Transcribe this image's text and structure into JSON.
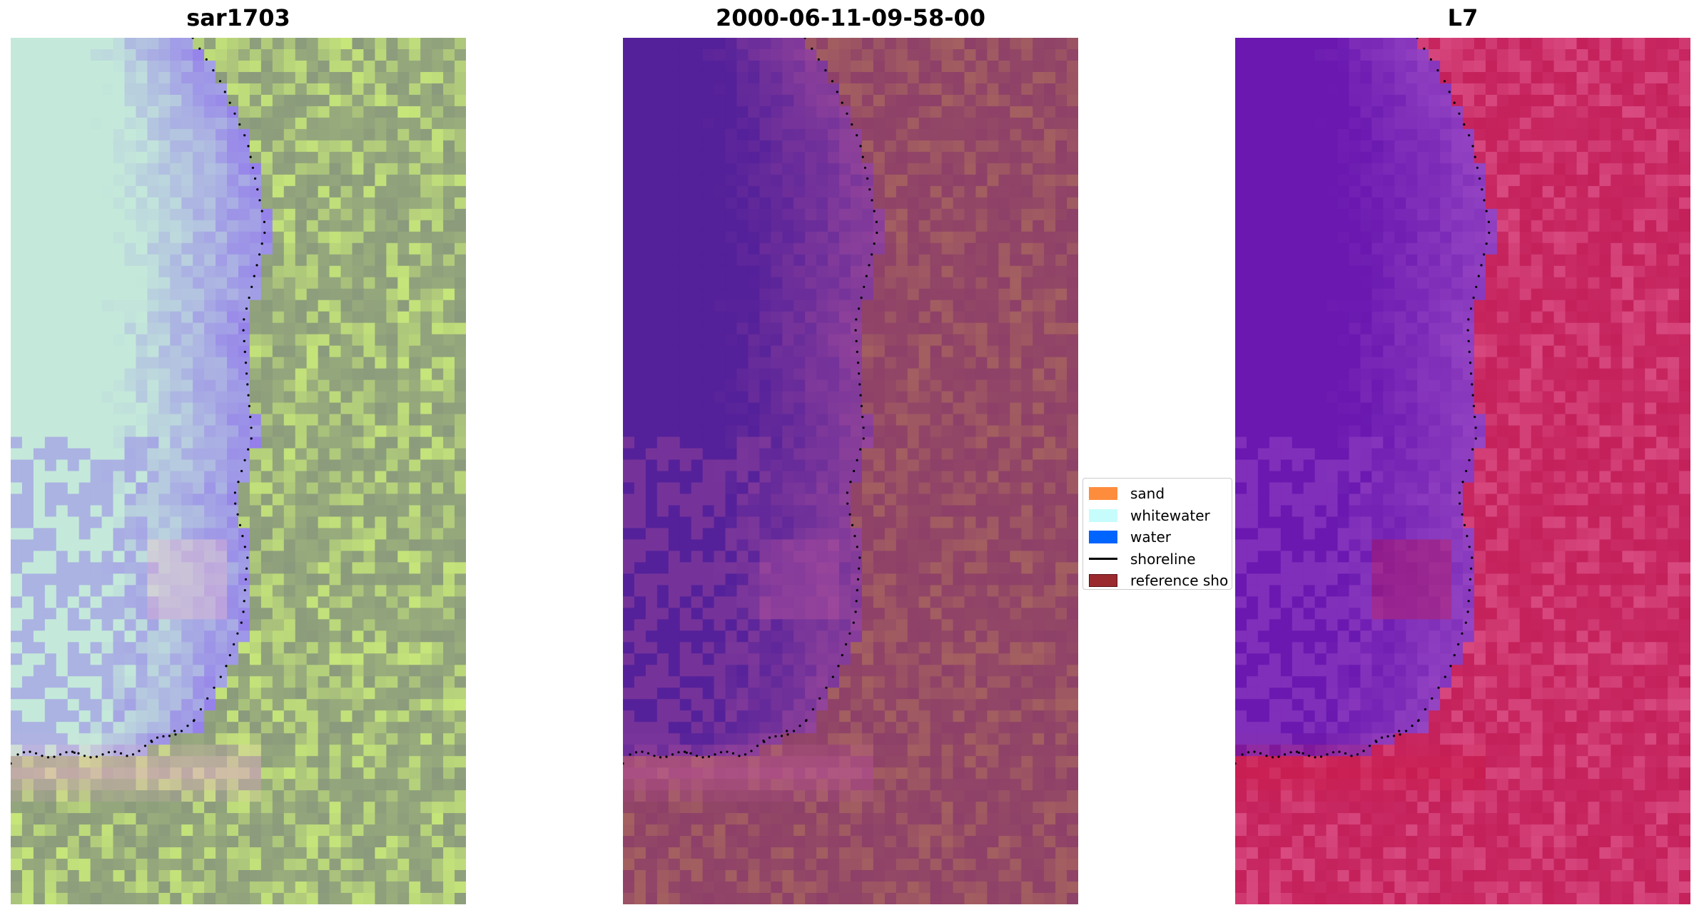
{
  "panels": [
    {
      "title": "sar1703",
      "colors": {
        "water": "#c4e9da",
        "mid": "#9b8fe8",
        "land": "#8a9a7c",
        "bright": "#c6e67a",
        "glow": "#f0b6cc"
      }
    },
    {
      "title": "2000-06-11-09-58-00",
      "colors": {
        "water": "#55219a",
        "mid": "#8a3f9a",
        "land": "#8e4068",
        "bright": "#a46060",
        "glow": "#c25a9c"
      }
    },
    {
      "title": "L7",
      "colors": {
        "water": "#6a18b0",
        "mid": "#8f3fc0",
        "land": "#c4205a",
        "bright": "#d84a80",
        "glow": "#cc1a48"
      }
    }
  ],
  "legend": {
    "items": [
      {
        "label": "sand",
        "color": "#fe8c3d",
        "kind": "patch"
      },
      {
        "label": "whitewater",
        "color": "#c7fcfc",
        "kind": "patch"
      },
      {
        "label": "water",
        "color": "#0064ff",
        "kind": "patch"
      },
      {
        "label": "shoreline",
        "color": "#000000",
        "kind": "line"
      },
      {
        "label": "reference sho",
        "color": "#9b2a2e",
        "kind": "patch"
      }
    ]
  }
}
